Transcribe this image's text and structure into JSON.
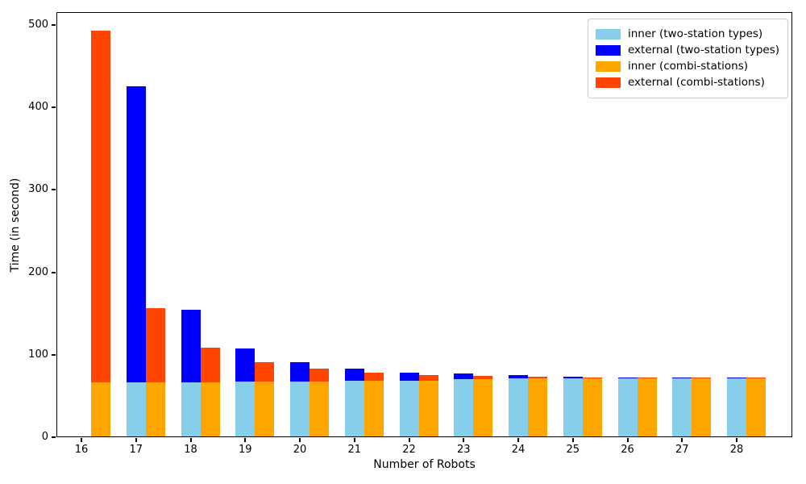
{
  "figure": {
    "background": "#ffffff",
    "spine_color": "#000000"
  },
  "chart_data": {
    "type": "bar",
    "stacked": true,
    "grouped": true,
    "title": "",
    "xlabel": "Number of Robots",
    "ylabel": "Time (in second)",
    "x": [
      16,
      17,
      18,
      19,
      20,
      21,
      22,
      23,
      24,
      25,
      26,
      27,
      28
    ],
    "ylim": [
      0,
      500
    ],
    "yticks": [
      0,
      100,
      200,
      300,
      400,
      500
    ],
    "legend_position": "upper right",
    "grid": false,
    "groups": [
      "two-station",
      "combi"
    ],
    "series": [
      {
        "name": "inner (two-station types)",
        "color": "#87CEEB",
        "group": "two-station",
        "values": [
          null,
          66,
          66,
          67,
          67,
          68,
          68,
          69,
          70,
          70,
          70,
          70,
          70
        ]
      },
      {
        "name": "external (two-station types)",
        "color": "#0000FF",
        "group": "two-station",
        "values": [
          null,
          359,
          88,
          40,
          23,
          14,
          9,
          7,
          4,
          2,
          1.5,
          1.5,
          1.5
        ]
      },
      {
        "name": "inner (combi-stations)",
        "color": "#FFA500",
        "group": "combi",
        "values": [
          66,
          66,
          66,
          67,
          67,
          68,
          68,
          69,
          70,
          70,
          70,
          70,
          70
        ]
      },
      {
        "name": "external (combi-stations)",
        "color": "#FF4500",
        "group": "combi",
        "values": [
          426,
          90,
          42,
          23,
          15,
          9,
          6,
          4,
          2,
          1,
          1,
          1,
          1
        ]
      }
    ],
    "stacked_totals_note": "totals (inner+external): two-station 17..28 = 425,154,107,90,82,77,76,74,72,71.5,71.5,71.5 ; combi 16..28 = 492,156,108,90,82,77,74,73,72,71,71,71,71"
  }
}
